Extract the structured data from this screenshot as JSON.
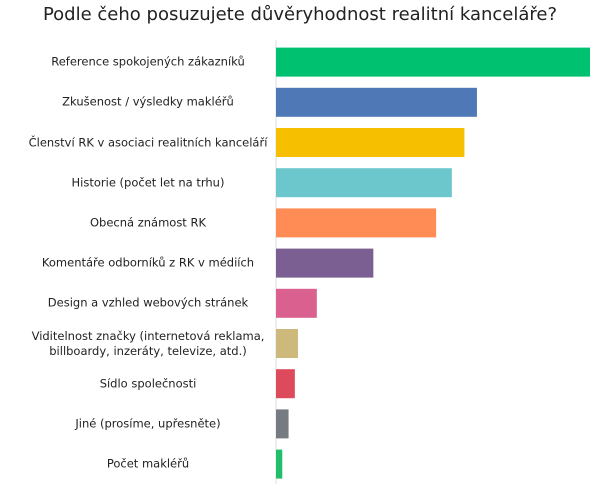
{
  "chart_data": {
    "type": "bar",
    "orientation": "horizontal",
    "title": "Podle čeho posuzujete důvěryhodnost realitní kanceláře?",
    "categories": [
      "Reference spokojených zákazníků",
      "Zkušenost / výsledky makléřů",
      "Členství RK v asociaci realitních kanceláří",
      "Historie (počet let na trhu)",
      "Obecná známost RK",
      "Komentáře odborníků z RK v médiích",
      "Design a vzhled webových stránek",
      "Viditelnost značky (internetová reklama, billboardy, inzeráty, televize, atd.)",
      "Sídlo společnosti",
      "Jiné (prosíme, upřesněte)",
      "Počet makléřů"
    ],
    "values": [
      100,
      64,
      60,
      56,
      51,
      31,
      13,
      7,
      6,
      4,
      2
    ],
    "colors": [
      "#00c170",
      "#4f79b6",
      "#f6c000",
      "#6cc7cc",
      "#ff8c55",
      "#7b5e92",
      "#d9608f",
      "#cdb97c",
      "#dd4a5b",
      "#757b81",
      "#21bf6b"
    ],
    "xlim": [
      0,
      100
    ]
  }
}
